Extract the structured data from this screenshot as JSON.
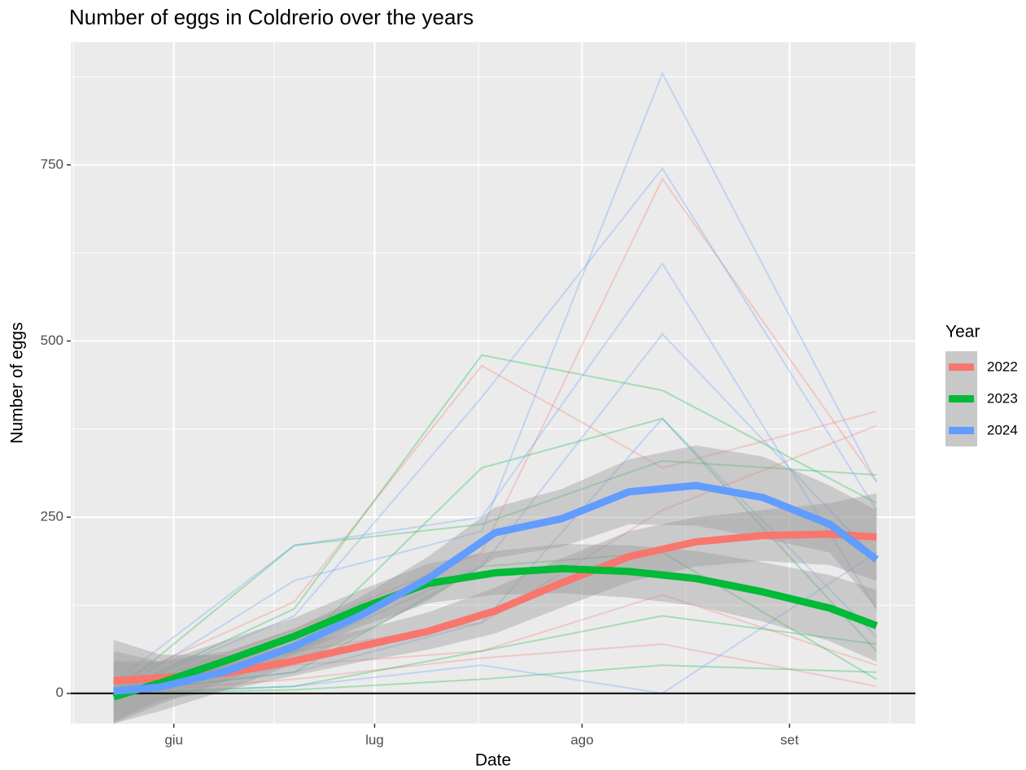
{
  "chart_data": {
    "type": "line",
    "title": "Number of eggs in Coldrerio over the years",
    "xlabel": "Date",
    "ylabel": "Number of eggs",
    "legend_title": "Year",
    "legend": "right",
    "grid": true,
    "xlim": [
      136.6,
      262.8
    ],
    "xticks": [
      {
        "value": 152,
        "label": "giu"
      },
      {
        "value": 182,
        "label": "lug"
      },
      {
        "value": 213,
        "label": "ago"
      },
      {
        "value": 244,
        "label": "set"
      }
    ],
    "xminor": [
      137,
      167,
      197.5,
      228.5,
      259
    ],
    "ylim": [
      -43,
      924
    ],
    "yticks": [
      0,
      250,
      500,
      750
    ],
    "yminor": [
      125,
      375,
      625,
      875
    ],
    "hline": 0,
    "x": [
      143,
      150,
      160,
      170,
      180,
      190,
      200,
      210,
      220,
      230,
      240,
      250,
      257
    ],
    "series": [
      {
        "name": "2022",
        "color": "#F8766D",
        "values": [
          18,
          22,
          29,
          46,
          67,
          88,
          117,
          157,
          194,
          215,
          224,
          226,
          222
        ],
        "lower": [
          -40,
          -10,
          5,
          25,
          45,
          62,
          85,
          122,
          158,
          180,
          188,
          182,
          160
        ],
        "upper": [
          76,
          55,
          54,
          68,
          90,
          115,
          150,
          192,
          230,
          250,
          260,
          270,
          284
        ],
        "traces": {
          "x": [
            143,
            170,
            198,
            225,
            257
          ],
          "series": [
            {
              "values": [
                15,
                130,
                465,
                320,
                400
              ]
            },
            {
              "values": [
                0,
                90,
                200,
                730,
                300
              ]
            },
            {
              "values": [
                10,
                60,
                100,
                260,
                380
              ]
            },
            {
              "values": [
                0,
                40,
                60,
                140,
                40
              ]
            },
            {
              "values": [
                0,
                20,
                50,
                70,
                10
              ]
            }
          ]
        }
      },
      {
        "name": "2023",
        "color": "#00BA38",
        "values": [
          -5,
          15,
          47,
          81,
          121,
          156,
          171,
          177,
          173,
          163,
          144,
          121,
          96
        ],
        "lower": [
          -43,
          -15,
          18,
          55,
          95,
          128,
          140,
          142,
          136,
          124,
          102,
          74,
          45
        ],
        "upper": [
          45,
          45,
          76,
          107,
          147,
          184,
          202,
          212,
          210,
          202,
          186,
          168,
          147
        ],
        "traces": {
          "x": [
            143,
            170,
            198,
            225,
            257
          ],
          "series": [
            {
              "values": [
                0,
                210,
                240,
                330,
                310
              ]
            },
            {
              "values": [
                0,
                120,
                480,
                430,
                270
              ]
            },
            {
              "values": [
                0,
                60,
                320,
                390,
                60
              ]
            },
            {
              "values": [
                0,
                30,
                180,
                200,
                20
              ]
            },
            {
              "values": [
                0,
                10,
                60,
                110,
                70
              ]
            },
            {
              "values": [
                0,
                5,
                20,
                40,
                30
              ]
            }
          ]
        }
      },
      {
        "name": "2024",
        "color": "#619CFF",
        "values": [
          3,
          9,
          32,
          67,
          111,
          163,
          228,
          248,
          286,
          295,
          278,
          240,
          190
        ],
        "lower": [
          -43,
          -25,
          5,
          42,
          85,
          132,
          192,
          208,
          240,
          238,
          220,
          200,
          120
        ],
        "upper": [
          60,
          45,
          60,
          92,
          137,
          194,
          264,
          290,
          332,
          352,
          336,
          295,
          260
        ],
        "traces": {
          "x": [
            143,
            170,
            198,
            225,
            257
          ],
          "series": [
            {
              "values": [
                0,
                160,
                230,
                880,
                300
              ]
            },
            {
              "values": [
                0,
                110,
                420,
                745,
                260
              ]
            },
            {
              "values": [
                15,
                210,
                250,
                610,
                120
              ]
            },
            {
              "values": [
                5,
                60,
                180,
                510,
                190
              ]
            },
            {
              "values": [
                0,
                30,
                100,
                390,
                80
              ]
            },
            {
              "values": [
                0,
                10,
                40,
                0,
                200
              ]
            }
          ]
        }
      }
    ]
  }
}
